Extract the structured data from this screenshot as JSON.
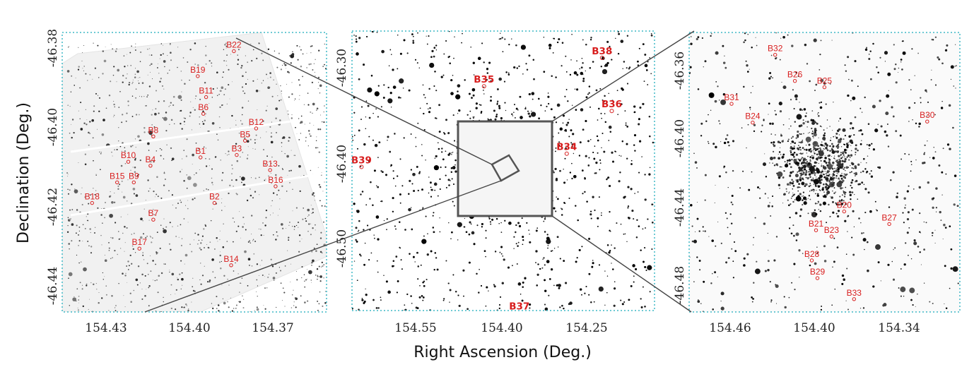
{
  "figure": {
    "xlabel": "Right Ascension (Deg.)",
    "ylabel": "Declination (Deg.)"
  },
  "panels": {
    "left": {
      "xticks": [
        "154.43",
        "154.40",
        "154.37"
      ],
      "yticks": [
        "-46.38",
        "-46.40",
        "-46.42",
        "-46.44"
      ],
      "sources": [
        {
          "label": "B22",
          "x": 154.384,
          "y": -46.3808
        },
        {
          "label": "B19",
          "x": 154.397,
          "y": -46.3871
        },
        {
          "label": "B11",
          "x": 154.394,
          "y": -46.3924
        },
        {
          "label": "B6",
          "x": 154.395,
          "y": -46.3966
        },
        {
          "label": "B12",
          "x": 154.376,
          "y": -46.4003
        },
        {
          "label": "B5",
          "x": 154.38,
          "y": -46.4034
        },
        {
          "label": "B8",
          "x": 154.413,
          "y": -46.4023
        },
        {
          "label": "B3",
          "x": 154.383,
          "y": -46.407
        },
        {
          "label": "B1",
          "x": 154.396,
          "y": -46.4076
        },
        {
          "label": "B10",
          "x": 154.422,
          "y": -46.4087
        },
        {
          "label": "B4",
          "x": 154.414,
          "y": -46.4097
        },
        {
          "label": "B13",
          "x": 154.371,
          "y": -46.4108
        },
        {
          "label": "B16",
          "x": 154.369,
          "y": -46.4149
        },
        {
          "label": "B15",
          "x": 154.426,
          "y": -46.4139
        },
        {
          "label": "B9",
          "x": 154.42,
          "y": -46.4139
        },
        {
          "label": "B18",
          "x": 154.435,
          "y": -46.4191
        },
        {
          "label": "B2",
          "x": 154.391,
          "y": -46.4191
        },
        {
          "label": "B7",
          "x": 154.413,
          "y": -46.4233
        },
        {
          "label": "B17",
          "x": 154.418,
          "y": -46.4306
        },
        {
          "label": "B14",
          "x": 154.385,
          "y": -46.4348
        }
      ]
    },
    "middle": {
      "xticks": [
        "154.55",
        "154.40",
        "154.25"
      ],
      "yticks": [
        "-46.30",
        "-46.40",
        "-46.50"
      ],
      "sources": [
        {
          "label": "B38",
          "x": 154.223,
          "y": -46.289
        },
        {
          "label": "B35",
          "x": 154.43,
          "y": -46.3205
        },
        {
          "label": "B36",
          "x": 154.206,
          "y": -46.3478
        },
        {
          "label": "B34",
          "x": 154.285,
          "y": -46.3951
        },
        {
          "label": "B39",
          "x": 154.645,
          "y": -46.4098
        },
        {
          "label": "B37",
          "x": 154.368,
          "y": -46.5716
        }
      ]
    },
    "right": {
      "xticks": [
        "154.46",
        "154.40",
        "154.34"
      ],
      "yticks": [
        "-46.36",
        "-46.40",
        "-46.44",
        "-46.48"
      ],
      "sources": [
        {
          "label": "B32",
          "x": 154.428,
          "y": -46.3512
        },
        {
          "label": "B26",
          "x": 154.414,
          "y": -46.3658
        },
        {
          "label": "B25",
          "x": 154.393,
          "y": -46.3693
        },
        {
          "label": "B31",
          "x": 154.459,
          "y": -46.3786
        },
        {
          "label": "B30",
          "x": 154.32,
          "y": -46.3885
        },
        {
          "label": "B24",
          "x": 154.444,
          "y": -46.3891
        },
        {
          "label": "B20",
          "x": 154.379,
          "y": -46.4388
        },
        {
          "label": "B27",
          "x": 154.347,
          "y": -46.4458
        },
        {
          "label": "B21",
          "x": 154.399,
          "y": -46.4493
        },
        {
          "label": "B23",
          "x": 154.388,
          "y": -46.4528
        },
        {
          "label": "B28",
          "x": 154.402,
          "y": -46.4662
        },
        {
          "label": "B29",
          "x": 154.398,
          "y": -46.4761
        },
        {
          "label": "B33",
          "x": 154.372,
          "y": -46.4878
        }
      ]
    }
  }
}
